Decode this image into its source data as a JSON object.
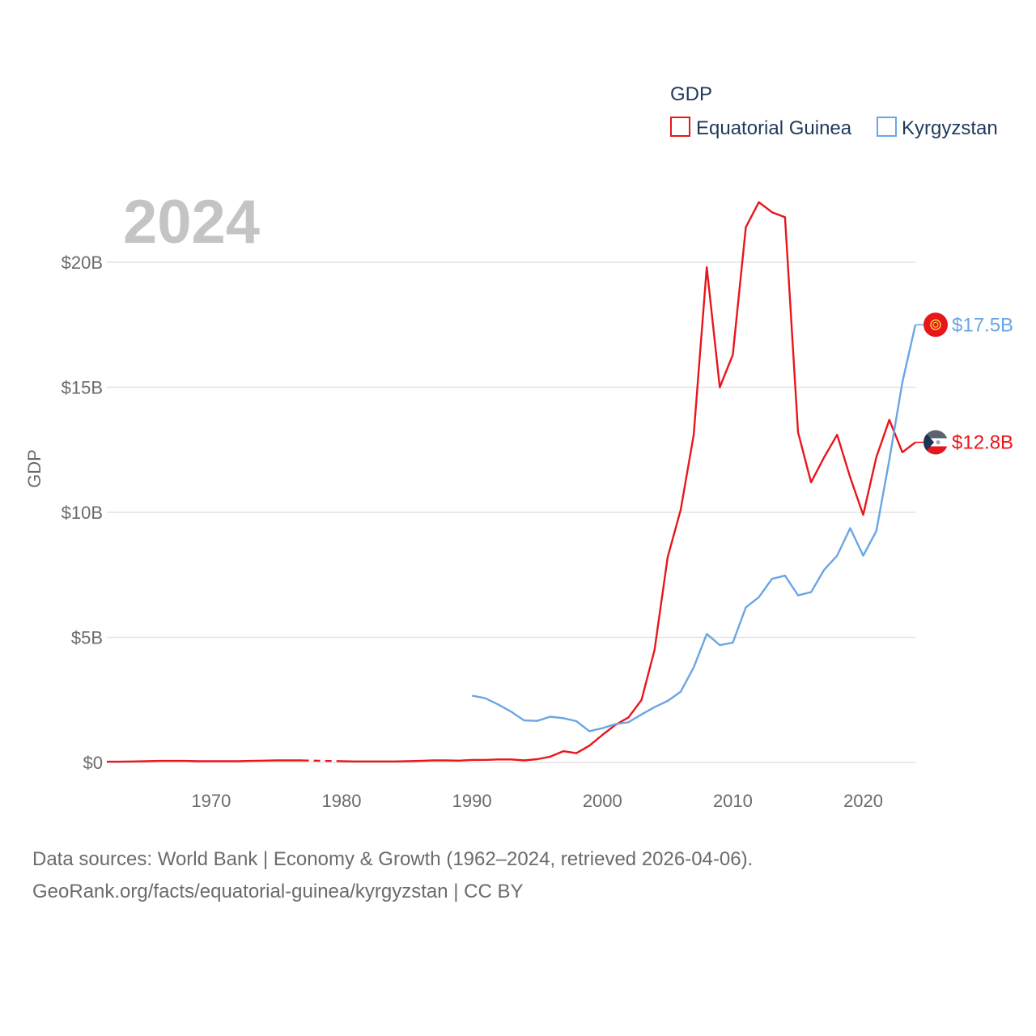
{
  "chart_data": {
    "type": "line",
    "legend_title": "GDP",
    "year_label": "2024",
    "ylabel": "GDP",
    "xlim": [
      1962,
      2024
    ],
    "ylim": [
      0,
      22.5
    ],
    "x_ticks": [
      1970,
      1980,
      1990,
      2000,
      2010,
      2020
    ],
    "y_ticks": [
      {
        "value": 0,
        "label": "$0"
      },
      {
        "value": 5,
        "label": "$5B"
      },
      {
        "value": 10,
        "label": "$10B"
      },
      {
        "value": 15,
        "label": "$15B"
      },
      {
        "value": 20,
        "label": "$20B"
      }
    ],
    "gap": {
      "series": "Equatorial Guinea",
      "from": 1977,
      "to": 1980
    },
    "series": [
      {
        "name": "Equatorial Guinea",
        "color": "#e8161b",
        "end_label": "$12.8B",
        "points": [
          [
            1962,
            0.03
          ],
          [
            1963,
            0.03
          ],
          [
            1964,
            0.04
          ],
          [
            1965,
            0.05
          ],
          [
            1966,
            0.06
          ],
          [
            1967,
            0.06
          ],
          [
            1968,
            0.06
          ],
          [
            1969,
            0.05
          ],
          [
            1970,
            0.05
          ],
          [
            1971,
            0.05
          ],
          [
            1972,
            0.05
          ],
          [
            1973,
            0.06
          ],
          [
            1974,
            0.07
          ],
          [
            1975,
            0.08
          ],
          [
            1976,
            0.08
          ],
          [
            1977,
            0.08
          ],
          [
            1980,
            0.05
          ],
          [
            1981,
            0.04
          ],
          [
            1982,
            0.04
          ],
          [
            1983,
            0.04
          ],
          [
            1984,
            0.04
          ],
          [
            1985,
            0.05
          ],
          [
            1986,
            0.06
          ],
          [
            1987,
            0.08
          ],
          [
            1988,
            0.08
          ],
          [
            1989,
            0.07
          ],
          [
            1990,
            0.1
          ],
          [
            1991,
            0.1
          ],
          [
            1992,
            0.12
          ],
          [
            1993,
            0.12
          ],
          [
            1994,
            0.08
          ],
          [
            1995,
            0.13
          ],
          [
            1996,
            0.23
          ],
          [
            1997,
            0.45
          ],
          [
            1998,
            0.37
          ],
          [
            1999,
            0.67
          ],
          [
            2000,
            1.1
          ],
          [
            2001,
            1.5
          ],
          [
            2002,
            1.8
          ],
          [
            2003,
            2.5
          ],
          [
            2004,
            4.5
          ],
          [
            2005,
            8.2
          ],
          [
            2006,
            10.1
          ],
          [
            2007,
            13.1
          ],
          [
            2008,
            19.8
          ],
          [
            2009,
            15.0
          ],
          [
            2010,
            16.3
          ],
          [
            2011,
            21.4
          ],
          [
            2012,
            22.4
          ],
          [
            2013,
            22.0
          ],
          [
            2014,
            21.8
          ],
          [
            2015,
            13.2
          ],
          [
            2016,
            11.2
          ],
          [
            2017,
            12.2
          ],
          [
            2018,
            13.1
          ],
          [
            2019,
            11.4
          ],
          [
            2020,
            9.9
          ],
          [
            2021,
            12.2
          ],
          [
            2022,
            13.7
          ],
          [
            2023,
            12.4
          ],
          [
            2024,
            12.8
          ]
        ]
      },
      {
        "name": "Kyrgyzstan",
        "color": "#6aa6e3",
        "end_label": "$17.5B",
        "points": [
          [
            1990,
            2.67
          ],
          [
            1991,
            2.57
          ],
          [
            1992,
            2.32
          ],
          [
            1993,
            2.03
          ],
          [
            1994,
            1.68
          ],
          [
            1995,
            1.66
          ],
          [
            1996,
            1.83
          ],
          [
            1997,
            1.77
          ],
          [
            1998,
            1.65
          ],
          [
            1999,
            1.25
          ],
          [
            2000,
            1.37
          ],
          [
            2001,
            1.53
          ],
          [
            2002,
            1.61
          ],
          [
            2003,
            1.92
          ],
          [
            2004,
            2.21
          ],
          [
            2005,
            2.46
          ],
          [
            2006,
            2.83
          ],
          [
            2007,
            3.8
          ],
          [
            2008,
            5.14
          ],
          [
            2009,
            4.69
          ],
          [
            2010,
            4.79
          ],
          [
            2011,
            6.2
          ],
          [
            2012,
            6.61
          ],
          [
            2013,
            7.34
          ],
          [
            2014,
            7.47
          ],
          [
            2015,
            6.68
          ],
          [
            2016,
            6.81
          ],
          [
            2017,
            7.7
          ],
          [
            2018,
            8.27
          ],
          [
            2019,
            9.37
          ],
          [
            2020,
            8.27
          ],
          [
            2021,
            9.25
          ],
          [
            2022,
            12.1
          ],
          [
            2023,
            15.2
          ],
          [
            2024,
            17.5
          ]
        ]
      }
    ]
  },
  "footer": {
    "line1": "Data sources: World Bank | Economy & Growth (1962–2024, retrieved 2026-04-06).",
    "line2": "GeoRank.org/facts/equatorial-guinea/kyrgyzstan | CC BY"
  }
}
